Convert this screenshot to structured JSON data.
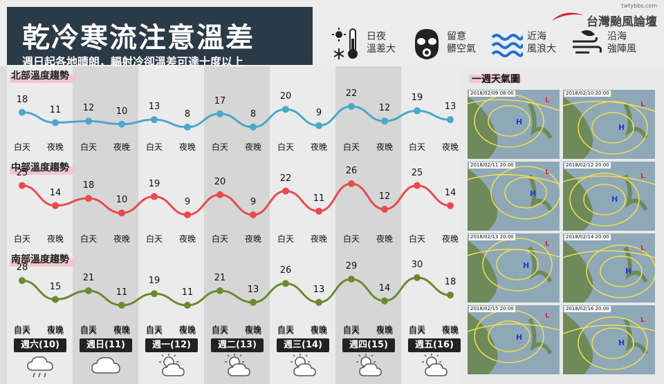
{
  "header": {
    "title": "乾冷寒流注意溫差",
    "subtitle": "週日起各地晴朗，輻射冷卻溫差可達十度以上"
  },
  "legend": [
    {
      "icon": "thermometer-sun-snow-icon",
      "line1": "日夜",
      "line2": "溫差大"
    },
    {
      "icon": "gas-mask-icon",
      "line1": "留意",
      "line2": "髒空氣"
    },
    {
      "icon": "waves-icon",
      "line1": "近海",
      "line2": "風浪大"
    },
    {
      "icon": "wind-leaf-icon",
      "line1": "沿海",
      "line2": "強陣風"
    }
  ],
  "brand": {
    "url": "twtybbs.com",
    "name": "台灣颱風論壇"
  },
  "periods": {
    "day": "白天",
    "night": "夜晚"
  },
  "chart_data": [
    {
      "type": "line",
      "title": "北部溫度趨勢",
      "color": "#4aa8c8",
      "values": [
        18,
        11,
        12,
        10,
        13,
        8,
        17,
        8,
        20,
        9,
        22,
        12,
        19,
        13
      ]
    },
    {
      "type": "line",
      "title": "中部溫度趨勢",
      "color": "#e84a4f",
      "values": [
        25,
        14,
        18,
        10,
        19,
        9,
        20,
        9,
        22,
        11,
        26,
        12,
        25,
        14
      ]
    },
    {
      "type": "line",
      "title": "南部溫度趨勢",
      "color": "#6b8a2e",
      "values": [
        28,
        15,
        21,
        11,
        19,
        11,
        21,
        13,
        26,
        13,
        29,
        14,
        30,
        18
      ]
    }
  ],
  "days": [
    "週六(10)",
    "週日(11)",
    "週一(12)",
    "週二(13)",
    "週三(14)",
    "週四(15)",
    "週五(16)"
  ],
  "weather_icons": [
    "rain-cloud-icon",
    "cloud-icon",
    "sun-cloud-icon",
    "sun-cloud-icon",
    "sun-cloud-icon",
    "sun-cloud-icon",
    "sun-cloud-icon"
  ],
  "maps": {
    "title": "一週天氣圖",
    "dates": [
      "2018/02/09 08:00",
      "2018/02/10 20:00",
      "2018/02/11 20:00",
      "2018/02/12 20:00",
      "2018/02/13 20:00",
      "2018/02/14 20:00",
      "2018/02/15 20:00",
      "2018/02/16 20:00"
    ]
  }
}
